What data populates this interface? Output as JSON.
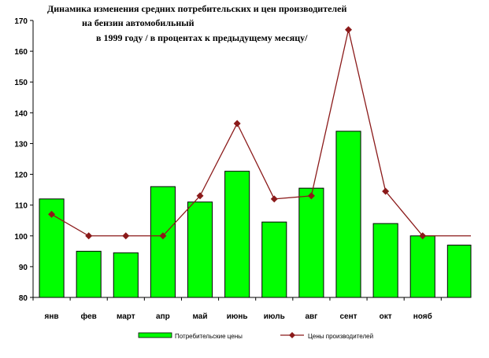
{
  "chart_data": {
    "type": "bar",
    "title_lines": [
      "Динамика изменения средних потребительских и цен производителей",
      "на бензин автомобильный",
      "в 1999 году / в процентах к предыдущему месяцу/"
    ],
    "categories": [
      "янв",
      "фев",
      "март",
      "апр",
      "май",
      "июнь",
      "июль",
      "авг",
      "сент",
      "окт",
      "нояб",
      ""
    ],
    "ylim": [
      80,
      170
    ],
    "yticks": [
      80,
      90,
      100,
      110,
      120,
      130,
      140,
      150,
      160,
      170
    ],
    "series": [
      {
        "name": "Потребительские цены",
        "type": "bar",
        "color": "#00ff00",
        "values": [
          112,
          95,
          94.5,
          116,
          111,
          121,
          104.5,
          115.5,
          134,
          104,
          100,
          97
        ]
      },
      {
        "name": "Цены производителей",
        "type": "line",
        "color": "#8b1a1a",
        "values": [
          107,
          100,
          100,
          100,
          113,
          136.5,
          112,
          113,
          167,
          114.5,
          100,
          100
        ]
      }
    ],
    "legend_position": "bottom",
    "grid": false
  }
}
